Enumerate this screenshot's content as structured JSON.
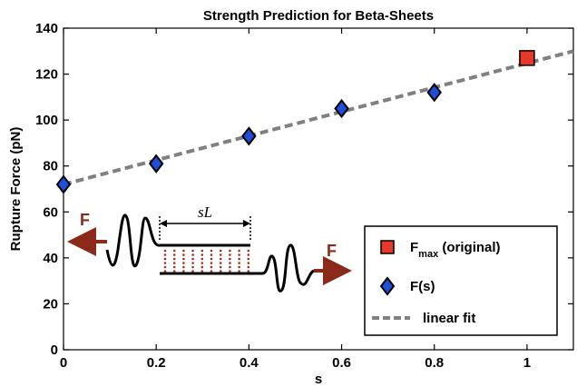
{
  "chart_data": {
    "type": "scatter",
    "title": "Strength Prediction for Beta-Sheets",
    "xlabel": "s",
    "ylabel": "Rupture Force (pN)",
    "xlim": [
      0,
      1.1
    ],
    "ylim": [
      0,
      140
    ],
    "x_ticks": [
      0,
      0.2,
      0.4,
      0.6,
      0.8,
      1
    ],
    "x_tick_labels": [
      "0",
      "0.2",
      "0.4",
      "0.6",
      "0.8",
      "1"
    ],
    "y_ticks": [
      0,
      20,
      40,
      60,
      80,
      100,
      120,
      140
    ],
    "y_tick_labels": [
      "0",
      "20",
      "40",
      "60",
      "80",
      "100",
      "120",
      "140"
    ],
    "grid": false,
    "legend_position": "bottom-right",
    "series": [
      {
        "key": "fmax",
        "legend_main": "F",
        "legend_sub": "max",
        "legend_tail": " (original)",
        "marker": "square",
        "color": "#e8382a",
        "points": [
          [
            1.0,
            127
          ]
        ]
      },
      {
        "key": "fs",
        "name": "F(s)",
        "marker": "diamond",
        "color": "#1f4fd8",
        "points": [
          [
            0.0,
            72
          ],
          [
            0.2,
            81
          ],
          [
            0.4,
            93
          ],
          [
            0.6,
            105
          ],
          [
            0.8,
            112
          ]
        ]
      },
      {
        "key": "fit",
        "name": "linear fit",
        "style": "dashed",
        "color": "#808080",
        "line": [
          [
            0,
            72
          ],
          [
            1.1,
            130
          ]
        ]
      }
    ],
    "inset": {
      "force_label_left": "F",
      "force_label_right": "F",
      "span_label": "sL",
      "arrow_color": "#8b2a1a"
    }
  }
}
